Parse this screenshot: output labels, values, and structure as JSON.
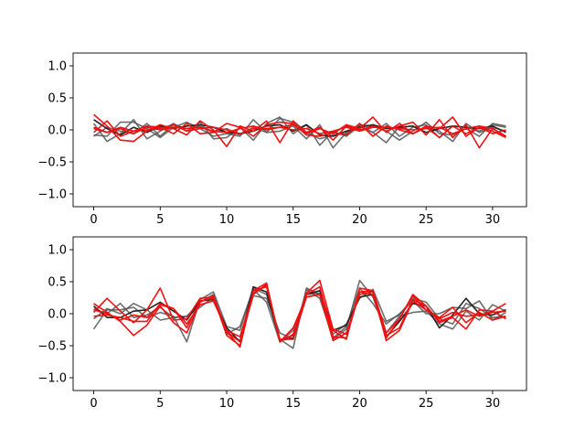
{
  "chart_data": [
    {
      "type": "line",
      "title": "",
      "xlabel": "",
      "ylabel": "",
      "xlim": [
        -1.55,
        32.55
      ],
      "ylim": [
        -1.2,
        1.2
      ],
      "xticks": [
        0,
        5,
        10,
        15,
        20,
        25,
        30
      ],
      "yticks": [
        1.0,
        0.5,
        0.0,
        -0.5,
        -1.0
      ],
      "ytick_labels": [
        "1.0",
        "0.5",
        "0.0",
        "−0.5",
        "−1.0"
      ],
      "grid": false,
      "legend": "none",
      "x": [
        0,
        1,
        2,
        3,
        4,
        5,
        6,
        7,
        8,
        9,
        10,
        11,
        12,
        13,
        14,
        15,
        16,
        17,
        18,
        19,
        20,
        21,
        22,
        23,
        24,
        25,
        26,
        27,
        28,
        29,
        30,
        31
      ],
      "series": [
        {
          "color": "#555555",
          "values": [
            -0.08,
            -0.1,
            0.12,
            0.12,
            0.02,
            -0.12,
            0.04,
            0.12,
            0.02,
            -0.1,
            -0.06,
            -0.1,
            0.16,
            -0.04,
            0.18,
            0.12,
            -0.04,
            -0.14,
            -0.08,
            -0.06,
            0.06,
            -0.04,
            0.1,
            -0.1,
            0.04,
            0.08,
            -0.12,
            0.06,
            0.04,
            -0.02,
            0.08,
            0.04
          ]
        },
        {
          "color": "#555555",
          "values": [
            0.1,
            -0.18,
            -0.06,
            0.16,
            -0.14,
            -0.02,
            0.1,
            -0.02,
            0.12,
            -0.14,
            -0.12,
            0.04,
            -0.16,
            0.1,
            0.2,
            -0.06,
            0.08,
            -0.24,
            -0.02,
            -0.1,
            0.06,
            -0.04,
            -0.2,
            0.06,
            -0.06,
            0.04,
            -0.02,
            -0.18,
            0.1,
            -0.04,
            0.04,
            -0.02
          ]
        },
        {
          "color": "#555555",
          "values": [
            -0.1,
            0.04,
            -0.02,
            -0.06,
            0.1,
            -0.1,
            0.08,
            0.02,
            0.06,
            -0.04,
            0.02,
            -0.08,
            0.04,
            -0.04,
            -0.02,
            0.06,
            -0.14,
            0.08,
            -0.28,
            -0.04,
            0.08,
            0.06,
            -0.02,
            -0.16,
            -0.02,
            0.12,
            -0.06,
            -0.08,
            0.02,
            -0.1,
            0.1,
            0.06
          ]
        },
        {
          "color": "#222222",
          "values": [
            0.16,
            0.02,
            -0.08,
            0.04,
            -0.04,
            0.06,
            0.02,
            0.06,
            0.08,
            0.04,
            -0.04,
            -0.06,
            -0.02,
            0.06,
            0.08,
            -0.02,
            0.08,
            -0.08,
            -0.1,
            -0.02,
            0.04,
            0.08,
            0.02,
            0.04,
            0.06,
            -0.04,
            0.02,
            0.06,
            0.04,
            0.02,
            0.06,
            -0.04
          ]
        },
        {
          "color": "#ee1111",
          "values": [
            0.24,
            0.06,
            -0.16,
            -0.18,
            -0.02,
            0.08,
            0.02,
            -0.08,
            0.14,
            0.0,
            -0.26,
            0.06,
            -0.02,
            0.14,
            -0.2,
            0.14,
            -0.04,
            0.04,
            -0.16,
            0.06,
            0.0,
            0.06,
            -0.02,
            0.06,
            0.12,
            -0.08,
            0.16,
            -0.12,
            0.08,
            -0.28,
            0.02,
            -0.1
          ]
        },
        {
          "color": "#ee1111",
          "values": [
            -0.04,
            0.14,
            -0.1,
            -0.02,
            0.06,
            0.04,
            -0.06,
            0.1,
            -0.06,
            -0.04,
            0.1,
            0.04,
            -0.1,
            0.08,
            0.12,
            0.1,
            -0.08,
            -0.1,
            -0.04,
            -0.08,
            0.1,
            -0.1,
            0.06,
            0.0,
            -0.06,
            0.04,
            -0.12,
            0.06,
            -0.06,
            0.04,
            -0.06,
            0.0
          ]
        },
        {
          "color": "#ee1111",
          "values": [
            0.02,
            -0.04,
            0.02,
            -0.06,
            0.04,
            0.0,
            0.04,
            0.02,
            0.04,
            -0.02,
            -0.04,
            0.02,
            0.06,
            0.0,
            0.04,
            0.08,
            -0.06,
            0.02,
            -0.06,
            0.08,
            0.02,
            0.2,
            -0.04,
            0.1,
            -0.06,
            0.06,
            0.02,
            0.2,
            -0.1,
            0.04,
            -0.02,
            -0.12
          ]
        },
        {
          "color": "#ee1111",
          "values": [
            0.04,
            -0.04,
            0.04,
            -0.02,
            0.0,
            0.02,
            0.08,
            -0.02,
            0.02,
            0.04,
            0.0,
            -0.06,
            0.02,
            0.02,
            0.04,
            0.0,
            0.02,
            -0.06,
            -0.02,
            0.04,
            -0.02,
            0.04,
            0.04,
            0.02,
            0.0,
            0.02,
            0.04,
            -0.06,
            0.02,
            0.06,
            0.02,
            -0.1
          ]
        }
      ]
    },
    {
      "type": "line",
      "title": "",
      "xlabel": "",
      "ylabel": "",
      "xlim": [
        -1.55,
        32.55
      ],
      "ylim": [
        -1.2,
        1.2
      ],
      "xticks": [
        0,
        5,
        10,
        15,
        20,
        25,
        30
      ],
      "yticks": [
        1.0,
        0.5,
        0.0,
        -0.5,
        -1.0
      ],
      "ytick_labels": [
        "1.0",
        "0.5",
        "0.0",
        "−0.5",
        "−1.0"
      ],
      "grid": false,
      "legend": "none",
      "x": [
        0,
        1,
        2,
        3,
        4,
        5,
        6,
        7,
        8,
        9,
        10,
        11,
        12,
        13,
        14,
        15,
        16,
        17,
        18,
        19,
        20,
        21,
        22,
        23,
        24,
        25,
        26,
        27,
        28,
        29,
        30,
        31
      ],
      "series": [
        {
          "color": "#555555",
          "values": [
            -0.24,
            0.06,
            0.06,
            0.1,
            -0.06,
            0.02,
            -0.04,
            -0.44,
            0.22,
            0.34,
            -0.2,
            -0.26,
            0.4,
            0.3,
            -0.4,
            -0.54,
            0.4,
            0.3,
            -0.4,
            -0.24,
            0.52,
            0.26,
            -0.3,
            -0.04,
            0.02,
            0.04,
            -0.16,
            -0.24,
            0.04,
            -0.1,
            0.14,
            0.04
          ]
        },
        {
          "color": "#555555",
          "values": [
            0.08,
            0.0,
            0.16,
            -0.06,
            -0.02,
            0.1,
            -0.06,
            -0.04,
            0.1,
            0.26,
            -0.32,
            -0.2,
            0.38,
            0.18,
            -0.44,
            -0.26,
            0.3,
            0.32,
            -0.32,
            -0.16,
            0.24,
            0.38,
            -0.12,
            -0.02,
            0.24,
            0.18,
            -0.08,
            -0.16,
            0.16,
            0.08,
            -0.06,
            -0.04
          ]
        },
        {
          "color": "#555555",
          "values": [
            -0.08,
            0.08,
            0.0,
            0.16,
            0.06,
            -0.1,
            -0.06,
            -0.04,
            0.18,
            0.3,
            -0.3,
            -0.42,
            0.28,
            0.24,
            -0.3,
            -0.4,
            0.38,
            0.24,
            -0.38,
            -0.2,
            0.4,
            0.16,
            -0.16,
            0.0,
            0.2,
            0.0,
            0.0,
            0.1,
            0.08,
            0.2,
            -0.1,
            0.02
          ]
        },
        {
          "color": "#222222",
          "values": [
            0.12,
            -0.06,
            -0.06,
            0.04,
            0.06,
            0.18,
            0.04,
            -0.1,
            0.2,
            0.22,
            -0.22,
            -0.44,
            0.42,
            0.34,
            -0.42,
            -0.38,
            0.3,
            0.36,
            -0.26,
            -0.18,
            0.26,
            0.3,
            -0.36,
            -0.12,
            0.16,
            0.12,
            -0.22,
            -0.02,
            0.24,
            0.0,
            -0.02,
            0.06
          ]
        },
        {
          "color": "#ee1111",
          "values": [
            0.16,
            0.02,
            -0.12,
            -0.34,
            -0.18,
            0.12,
            -0.14,
            -0.3,
            0.18,
            0.28,
            -0.28,
            -0.52,
            0.36,
            0.48,
            -0.44,
            -0.32,
            0.3,
            0.42,
            -0.36,
            -0.38,
            0.34,
            0.36,
            -0.3,
            -0.08,
            0.3,
            0.12,
            -0.14,
            -0.06,
            -0.24,
            0.06,
            0.04,
            0.16
          ]
        },
        {
          "color": "#ee1111",
          "values": [
            0.02,
            0.24,
            0.04,
            -0.14,
            0.06,
            0.4,
            -0.1,
            -0.08,
            0.24,
            0.26,
            -0.34,
            -0.5,
            0.36,
            0.42,
            -0.42,
            -0.34,
            0.32,
            0.52,
            -0.24,
            -0.32,
            0.34,
            0.3,
            -0.38,
            -0.08,
            0.28,
            0.06,
            -0.08,
            0.02,
            -0.04,
            -0.02,
            0.02,
            0.04
          ]
        },
        {
          "color": "#ee1111",
          "values": [
            -0.04,
            -0.02,
            -0.06,
            -0.12,
            -0.12,
            0.16,
            0.08,
            -0.16,
            0.14,
            0.2,
            -0.26,
            -0.36,
            0.32,
            0.44,
            -0.4,
            -0.4,
            0.26,
            0.3,
            -0.26,
            -0.4,
            0.4,
            0.36,
            -0.42,
            -0.26,
            0.2,
            0.06,
            -0.06,
            0.1,
            -0.14,
            0.02,
            -0.1,
            -0.04
          ]
        },
        {
          "color": "#ee1111",
          "values": [
            0.06,
            0.0,
            -0.1,
            -0.02,
            -0.06,
            0.14,
            0.08,
            -0.22,
            0.2,
            0.24,
            -0.28,
            -0.44,
            0.3,
            0.46,
            -0.44,
            -0.22,
            0.26,
            0.3,
            -0.42,
            -0.3,
            0.3,
            0.34,
            -0.34,
            -0.22,
            0.22,
            0.12,
            -0.12,
            -0.04,
            0.06,
            -0.04,
            0.04,
            -0.08
          ]
        }
      ]
    }
  ]
}
